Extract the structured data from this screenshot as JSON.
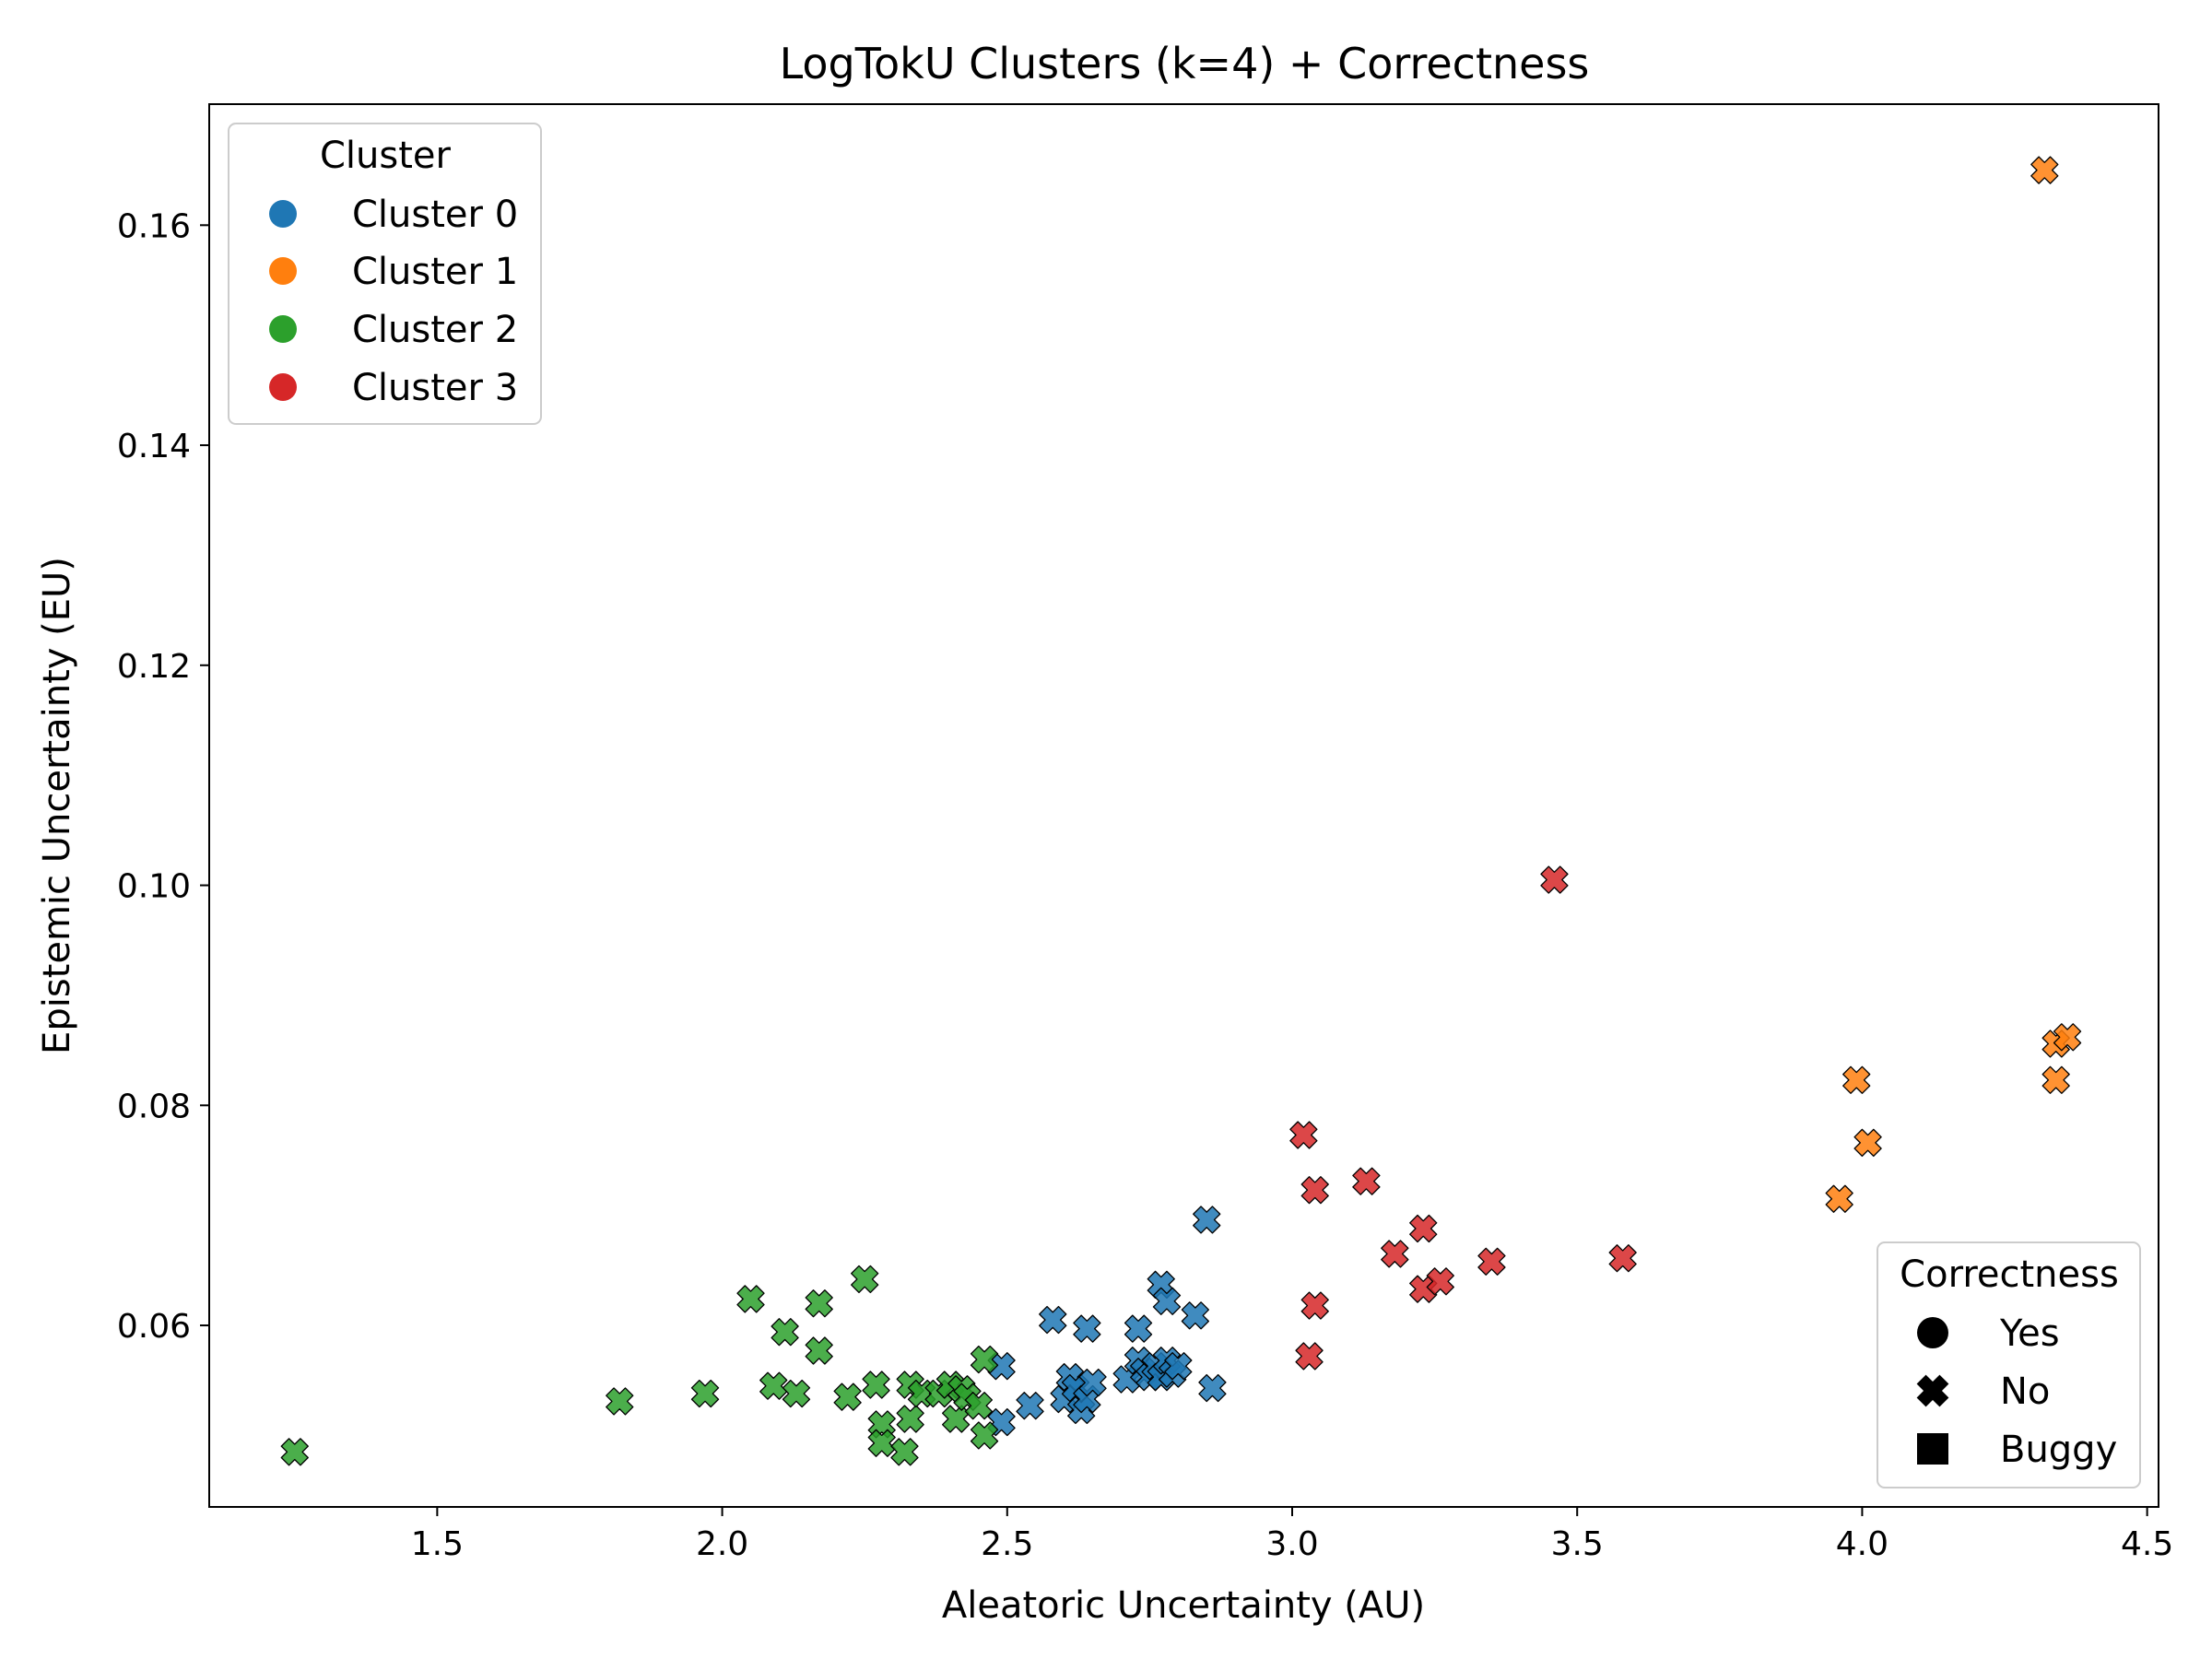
{
  "chart_data": {
    "type": "scatter",
    "title": "LogTokU Clusters (k=4) + Correctness",
    "xlabel": "Aleatoric Uncertainty (AU)",
    "ylabel": "Epistemic Uncertainty (EU)",
    "xlim": [
      1.1,
      4.52
    ],
    "ylim": [
      0.0435,
      0.171
    ],
    "xticks": [
      "1.5",
      "2.0",
      "2.5",
      "3.0",
      "3.5",
      "4.0",
      "4.5"
    ],
    "yticks": [
      "0.06",
      "0.08",
      "0.10",
      "0.12",
      "0.14",
      "0.16"
    ],
    "grid": false,
    "legend_cluster": {
      "title": "Cluster",
      "placement": "top-left",
      "items": [
        {
          "label": "Cluster 0",
          "color": "#1f77b4"
        },
        {
          "label": "Cluster 1",
          "color": "#ff7f0e"
        },
        {
          "label": "Cluster 2",
          "color": "#2ca02c"
        },
        {
          "label": "Cluster 3",
          "color": "#d62728"
        }
      ]
    },
    "legend_correctness": {
      "title": "Correctness",
      "placement": "bottom-right",
      "items": [
        {
          "label": "Yes",
          "marker": "circle"
        },
        {
          "label": "No",
          "marker": "x"
        },
        {
          "label": "Buggy",
          "marker": "square"
        }
      ]
    },
    "series": [
      {
        "name": "Cluster 0",
        "color": "#1f77b4",
        "correctness": "No",
        "points": [
          [
            2.49,
            0.0563
          ],
          [
            2.49,
            0.0512
          ],
          [
            2.54,
            0.0527
          ],
          [
            2.58,
            0.0605
          ],
          [
            2.6,
            0.0533
          ],
          [
            2.61,
            0.0553
          ],
          [
            2.62,
            0.0543
          ],
          [
            2.63,
            0.0523
          ],
          [
            2.64,
            0.0597
          ],
          [
            2.64,
            0.0533
          ],
          [
            2.65,
            0.0548
          ],
          [
            2.71,
            0.0551
          ],
          [
            2.73,
            0.0597
          ],
          [
            2.73,
            0.0568
          ],
          [
            2.74,
            0.0558
          ],
          [
            2.75,
            0.0553
          ],
          [
            2.76,
            0.0563
          ],
          [
            2.77,
            0.0637
          ],
          [
            2.77,
            0.0553
          ],
          [
            2.78,
            0.0622
          ],
          [
            2.78,
            0.0568
          ],
          [
            2.79,
            0.0556
          ],
          [
            2.8,
            0.0563
          ],
          [
            2.83,
            0.0609
          ],
          [
            2.85,
            0.0696
          ],
          [
            2.86,
            0.0543
          ]
        ]
      },
      {
        "name": "Cluster 1",
        "color": "#ff7f0e",
        "correctness": "No",
        "points": [
          [
            3.96,
            0.0715
          ],
          [
            3.99,
            0.0823
          ],
          [
            4.01,
            0.0766
          ],
          [
            4.32,
            0.165
          ],
          [
            4.34,
            0.0856
          ],
          [
            4.34,
            0.0823
          ],
          [
            4.36,
            0.0862
          ]
        ]
      },
      {
        "name": "Cluster 2",
        "color": "#2ca02c",
        "correctness": "No",
        "points": [
          [
            1.25,
            0.0485
          ],
          [
            1.82,
            0.0531
          ],
          [
            1.97,
            0.0538
          ],
          [
            2.05,
            0.0624
          ],
          [
            2.09,
            0.0545
          ],
          [
            2.11,
            0.0594
          ],
          [
            2.13,
            0.0538
          ],
          [
            2.17,
            0.062
          ],
          [
            2.17,
            0.0577
          ],
          [
            2.22,
            0.0535
          ],
          [
            2.25,
            0.0642
          ],
          [
            2.27,
            0.0546
          ],
          [
            2.28,
            0.051
          ],
          [
            2.28,
            0.0493
          ],
          [
            2.32,
            0.0485
          ],
          [
            2.33,
            0.0515
          ],
          [
            2.33,
            0.0546
          ],
          [
            2.35,
            0.0538
          ],
          [
            2.38,
            0.0538
          ],
          [
            2.4,
            0.0546
          ],
          [
            2.41,
            0.0515
          ],
          [
            2.42,
            0.0542
          ],
          [
            2.43,
            0.0535
          ],
          [
            2.45,
            0.0527
          ],
          [
            2.46,
            0.05
          ],
          [
            2.46,
            0.0569
          ]
        ]
      },
      {
        "name": "Cluster 3",
        "color": "#d62728",
        "correctness": "No",
        "points": [
          [
            3.02,
            0.0773
          ],
          [
            3.03,
            0.0572
          ],
          [
            3.04,
            0.0723
          ],
          [
            3.04,
            0.0618
          ],
          [
            3.13,
            0.0731
          ],
          [
            3.18,
            0.0665
          ],
          [
            3.23,
            0.0688
          ],
          [
            3.23,
            0.0633
          ],
          [
            3.26,
            0.064
          ],
          [
            3.35,
            0.0658
          ],
          [
            3.46,
            0.1005
          ],
          [
            3.58,
            0.0661
          ]
        ]
      }
    ]
  }
}
